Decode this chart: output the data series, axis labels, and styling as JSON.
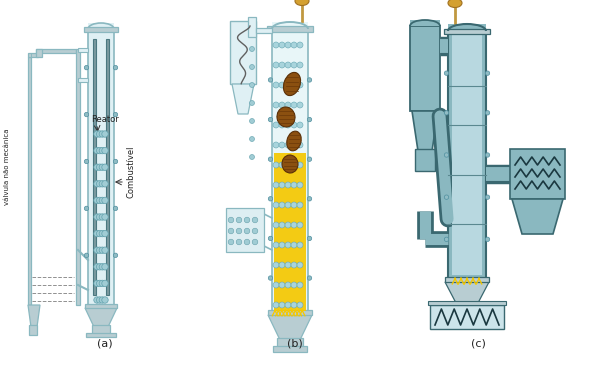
{
  "label_a": "(a)",
  "label_b": "(b)",
  "label_c": "(c)",
  "label_reator": "Reator",
  "label_combustivel": "Combustível",
  "label_valvula": "válvula não mecânica",
  "bg_color": "#ffffff",
  "rc": "#8ab8c0",
  "ri": "#dff0f4",
  "yc": "#f5c800",
  "lc": "#b8cdd2",
  "gc": "#909090",
  "arrow_c": "#f5c800",
  "tc": "#222222",
  "bc": "#7a4010",
  "fig_width": 5.99,
  "fig_height": 3.67,
  "dpi": 100
}
